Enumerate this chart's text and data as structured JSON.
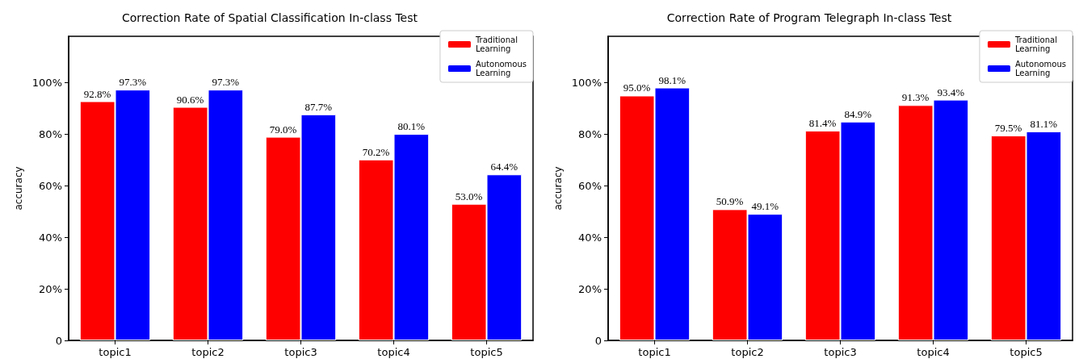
{
  "chart_data": [
    {
      "type": "bar",
      "title": "Correction Rate of Spatial Classification In-class Test",
      "ylabel": "accuracy",
      "categories": [
        "topic1",
        "topic2",
        "topic3",
        "topic4",
        "topic5"
      ],
      "series": [
        {
          "name": "Traditional Learning",
          "color": "#ff0000",
          "values": [
            92.8,
            90.6,
            79.0,
            70.2,
            53.0
          ],
          "value_labels": [
            "92.8%",
            "90.6%",
            "79.0%",
            "70.2%",
            "53.0%"
          ]
        },
        {
          "name": "Autonomous Learning",
          "color": "#0000ff",
          "values": [
            97.3,
            97.3,
            87.7,
            80.1,
            64.4
          ],
          "value_labels": [
            "97.3%",
            "97.3%",
            "87.7%",
            "80.1%",
            "64.4%"
          ]
        }
      ],
      "ylim": [
        0,
        118
      ],
      "yticks": [
        0,
        {
          "value": 20,
          "label": "20%"
        },
        {
          "value": 40,
          "label": "40%"
        },
        {
          "value": 60,
          "label": "60%"
        },
        {
          "value": 80,
          "label": "80%"
        },
        {
          "value": 100,
          "label": "100%"
        }
      ],
      "grid": false,
      "legend": "top right"
    },
    {
      "type": "bar",
      "title": "Correction Rate of Program Telegraph In-class Test",
      "ylabel": "accuracy",
      "categories": [
        "topic1",
        "topic2",
        "topic3",
        "topic4",
        "topic5"
      ],
      "series": [
        {
          "name": "Traditional Learning",
          "color": "#ff0000",
          "values": [
            95.0,
            50.9,
            81.4,
            91.3,
            79.5
          ],
          "value_labels": [
            "95.0%",
            "50.9%",
            "81.4%",
            "91.3%",
            "79.5%"
          ]
        },
        {
          "name": "Autonomous Learning",
          "color": "#0000ff",
          "values": [
            98.1,
            49.1,
            84.9,
            93.4,
            81.1
          ],
          "value_labels": [
            "98.1%",
            "49.1%",
            "84.9%",
            "93.4%",
            "81.1%"
          ]
        }
      ],
      "ylim": [
        0,
        118
      ],
      "yticks": [
        0,
        {
          "value": 20,
          "label": "20%"
        },
        {
          "value": 40,
          "label": "40%"
        },
        {
          "value": 60,
          "label": "60%"
        },
        {
          "value": 80,
          "label": "80%"
        },
        {
          "value": 100,
          "label": "100%"
        }
      ],
      "grid": false,
      "legend": "top right"
    }
  ]
}
